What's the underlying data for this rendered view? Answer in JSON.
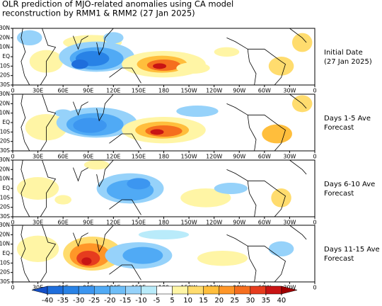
{
  "title": [
    "OLR prediction of MJO-related anomalies using CA model",
    "reconstruction by RMM1 & RMM2 (27 Jan 2025)"
  ],
  "panels": [
    {
      "label": [
        "Initial Date",
        "(27 Jan 2025)"
      ]
    },
    {
      "label": [
        "Days 1-5 Ave",
        "Forecast"
      ]
    },
    {
      "label": [
        "Days 6-10 Ave",
        "Forecast"
      ]
    },
    {
      "label": [
        "Days 11-15 Ave",
        "Forecast"
      ]
    }
  ],
  "lon_labels": [
    "0",
    "30E",
    "60E",
    "90E",
    "120E",
    "150E",
    "180",
    "150W",
    "120W",
    "90W",
    "60W",
    "30W",
    "0"
  ],
  "lat_labels": [
    "30N",
    "20N",
    "10N",
    "EQ",
    "10S",
    "20S",
    "30S"
  ],
  "colorbar": {
    "ticks": [
      -40,
      -35,
      -30,
      -25,
      -20,
      -15,
      -10,
      -5,
      5,
      10,
      15,
      20,
      25,
      30,
      35,
      40
    ],
    "colors": [
      "#1450c8",
      "#1e6edc",
      "#2882e6",
      "#3c96f0",
      "#50aaf5",
      "#6ebef8",
      "#96d2fa",
      "#b9ebfa",
      "#ffffff",
      "#fff5a5",
      "#ffdc6e",
      "#ffbe3c",
      "#ff9628",
      "#f56e1e",
      "#e63c1e",
      "#c81414",
      "#a00000"
    ]
  }
}
